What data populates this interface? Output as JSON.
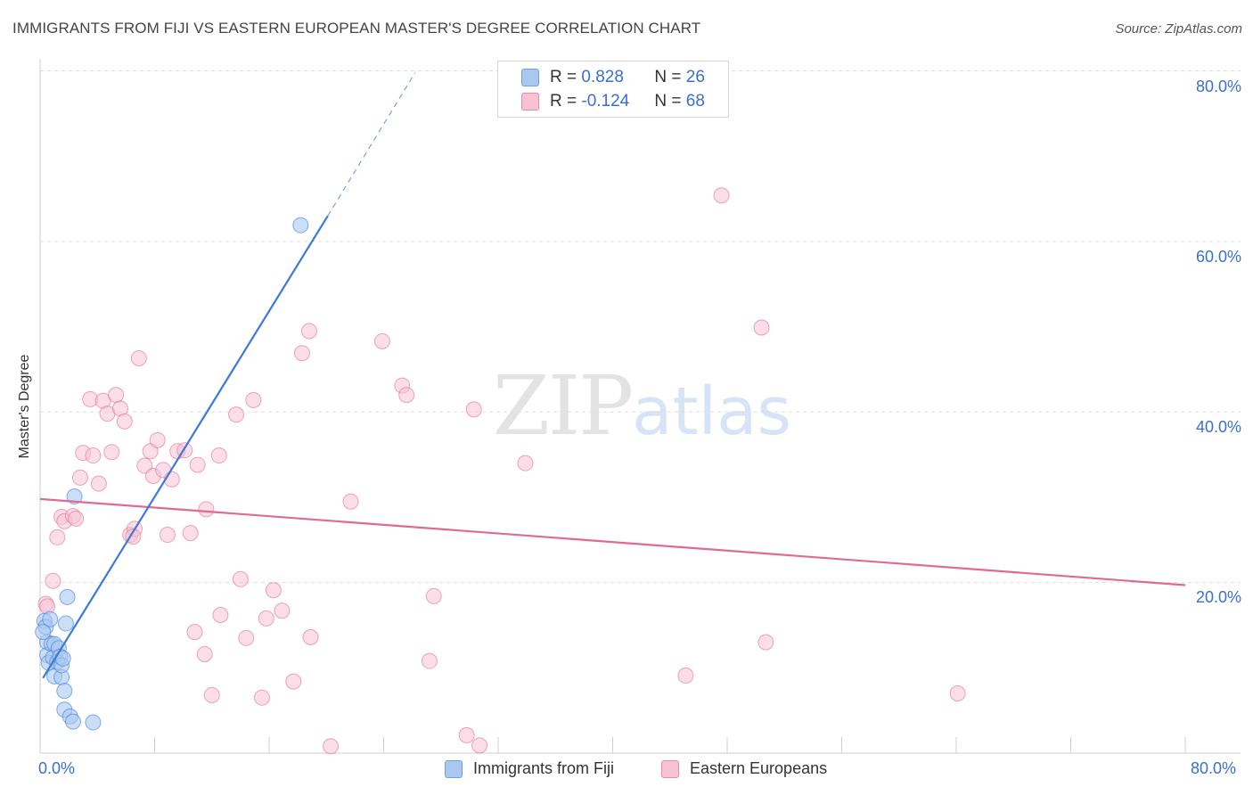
{
  "title": "IMMIGRANTS FROM FIJI VS EASTERN EUROPEAN MASTER'S DEGREE CORRELATION CHART",
  "source": "Source: ZipAtlas.com",
  "watermark": {
    "zip": "ZIP",
    "atlas": "atlas"
  },
  "legend_top": [
    {
      "r_label": "R = ",
      "r_value": "0.828",
      "n_label": "N = ",
      "n_value": "26",
      "color": "#a9c8f0",
      "border": "#6f9fe0"
    },
    {
      "r_label": "R = ",
      "r_value": "-0.124",
      "n_label": "N = ",
      "n_value": "68",
      "color": "#f7c3d3",
      "border": "#e98aa9"
    }
  ],
  "legend_bottom": [
    {
      "label": "Immigrants from Fiji",
      "color": "#a9c8f0",
      "border": "#6f9fe0"
    },
    {
      "label": "Eastern Europeans",
      "color": "#f7c3d3",
      "border": "#e98aa9"
    }
  ],
  "chart_data": {
    "type": "scatter",
    "ylabel": "Master's Degree",
    "xlim": [
      0,
      80
    ],
    "ylim": [
      0,
      80
    ],
    "x_tick_labels": [
      "0.0%",
      "80.0%"
    ],
    "y_tick_labels": [
      {
        "value": 20,
        "label": "20.0%"
      },
      {
        "value": 40,
        "label": "40.0%"
      },
      {
        "value": 60,
        "label": "60.0%"
      },
      {
        "value": 80,
        "label": "80.0%"
      }
    ],
    "colors": {
      "fiji": "#3a7ad8",
      "eastern": "#e06a95",
      "fiji_fill": "#a9c8f0",
      "eastern_fill": "#f7c3d3"
    },
    "series": [
      {
        "name": "Immigrants from Fiji",
        "points": [
          [
            0.3,
            15.5
          ],
          [
            0.4,
            14.8
          ],
          [
            0.5,
            13.0
          ],
          [
            0.5,
            11.5
          ],
          [
            0.6,
            10.6
          ],
          [
            0.7,
            15.7
          ],
          [
            0.8,
            12.8
          ],
          [
            0.9,
            11.2
          ],
          [
            1.0,
            9.0
          ],
          [
            1.0,
            12.8
          ],
          [
            1.2,
            10.7
          ],
          [
            1.3,
            12.3
          ],
          [
            1.4,
            11.3
          ],
          [
            1.5,
            8.9
          ],
          [
            1.5,
            10.3
          ],
          [
            1.6,
            11.1
          ],
          [
            1.7,
            5.1
          ],
          [
            1.7,
            7.3
          ],
          [
            1.8,
            15.2
          ],
          [
            1.9,
            18.3
          ],
          [
            2.1,
            4.3
          ],
          [
            2.3,
            3.7
          ],
          [
            2.4,
            30.1
          ],
          [
            3.7,
            3.6
          ],
          [
            18.2,
            61.9
          ],
          [
            0.2,
            14.2
          ]
        ],
        "trend": {
          "x1": 0.2,
          "y1": 8.8,
          "x2": 20.1,
          "y2": 63.0,
          "dash_x2": 26.2,
          "dash_y2": 79.8
        }
      },
      {
        "name": "Eastern Europeans",
        "points": [
          [
            0.4,
            17.5
          ],
          [
            0.5,
            17.2
          ],
          [
            0.9,
            20.2
          ],
          [
            1.2,
            25.3
          ],
          [
            1.5,
            27.7
          ],
          [
            1.7,
            27.2
          ],
          [
            2.3,
            27.8
          ],
          [
            2.5,
            27.5
          ],
          [
            2.8,
            32.3
          ],
          [
            3.0,
            35.2
          ],
          [
            3.5,
            41.5
          ],
          [
            3.7,
            34.9
          ],
          [
            4.1,
            31.6
          ],
          [
            4.4,
            41.3
          ],
          [
            4.7,
            39.8
          ],
          [
            5.0,
            35.3
          ],
          [
            5.3,
            42.0
          ],
          [
            5.6,
            40.4
          ],
          [
            5.9,
            38.9
          ],
          [
            6.3,
            25.6
          ],
          [
            6.6,
            26.3
          ],
          [
            6.9,
            46.3
          ],
          [
            7.3,
            33.7
          ],
          [
            7.7,
            35.4
          ],
          [
            7.9,
            32.5
          ],
          [
            8.2,
            36.7
          ],
          [
            8.6,
            33.2
          ],
          [
            8.9,
            25.6
          ],
          [
            9.2,
            32.1
          ],
          [
            9.6,
            35.4
          ],
          [
            10.1,
            35.5
          ],
          [
            10.5,
            25.8
          ],
          [
            10.8,
            14.2
          ],
          [
            11.0,
            33.8
          ],
          [
            11.5,
            11.6
          ],
          [
            11.6,
            28.6
          ],
          [
            12.0,
            6.8
          ],
          [
            12.5,
            34.9
          ],
          [
            12.6,
            16.2
          ],
          [
            13.7,
            39.7
          ],
          [
            14.0,
            20.4
          ],
          [
            14.4,
            13.5
          ],
          [
            14.9,
            41.4
          ],
          [
            15.5,
            6.5
          ],
          [
            15.8,
            15.8
          ],
          [
            16.3,
            19.1
          ],
          [
            16.9,
            16.7
          ],
          [
            17.7,
            8.4
          ],
          [
            18.3,
            46.9
          ],
          [
            18.8,
            49.5
          ],
          [
            18.9,
            13.6
          ],
          [
            20.3,
            0.8
          ],
          [
            21.7,
            29.5
          ],
          [
            23.9,
            48.3
          ],
          [
            25.3,
            43.1
          ],
          [
            25.6,
            42.0
          ],
          [
            27.2,
            10.8
          ],
          [
            27.5,
            18.4
          ],
          [
            29.8,
            2.1
          ],
          [
            30.3,
            40.3
          ],
          [
            30.7,
            0.9
          ],
          [
            33.9,
            34.0
          ],
          [
            45.1,
            9.1
          ],
          [
            47.6,
            65.4
          ],
          [
            50.4,
            49.9
          ],
          [
            50.7,
            13.0
          ],
          [
            64.1,
            7.0
          ],
          [
            6.5,
            25.4
          ]
        ],
        "trend": {
          "x1": 0.0,
          "y1": 29.8,
          "x2": 80.0,
          "y2": 19.7
        }
      }
    ]
  }
}
